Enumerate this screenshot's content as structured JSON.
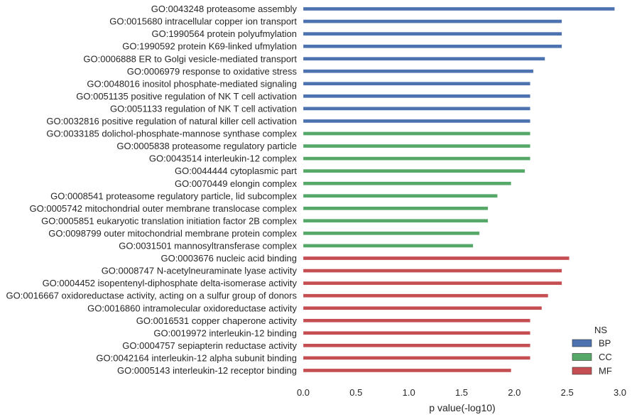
{
  "chart_data": {
    "type": "bar",
    "orientation": "horizontal",
    "xlabel": "p value(-log10)",
    "xlim": [
      0,
      3.0
    ],
    "xticks": [
      "0.0",
      "0.5",
      "1.0",
      "1.5",
      "2.0",
      "2.5",
      "3.0"
    ],
    "grid": false,
    "legend": {
      "title": "NS",
      "placement": "bottom-right",
      "entries": [
        {
          "name": "BP",
          "color": "#4c72b0"
        },
        {
          "name": "CC",
          "color": "#55a868"
        },
        {
          "name": "MF",
          "color": "#c44e52"
        }
      ]
    },
    "bars": [
      {
        "label": "GO:0043248 proteasome assembly",
        "value": 2.95,
        "ns": "BP"
      },
      {
        "label": "GO:0015680 intracellular copper ion transport",
        "value": 2.45,
        "ns": "BP"
      },
      {
        "label": "GO:1990564 protein polyufmylation",
        "value": 2.45,
        "ns": "BP"
      },
      {
        "label": "GO:1990592 protein K69-linked ufmylation",
        "value": 2.45,
        "ns": "BP"
      },
      {
        "label": "GO:0006888 ER to Golgi vesicle-mediated transport",
        "value": 2.29,
        "ns": "BP"
      },
      {
        "label": "GO:0006979 response to oxidative stress",
        "value": 2.18,
        "ns": "BP"
      },
      {
        "label": "GO:0048016 inositol phosphate-mediated signaling",
        "value": 2.15,
        "ns": "BP"
      },
      {
        "label": "GO:0051135 positive regulation of NK T cell activation",
        "value": 2.15,
        "ns": "BP"
      },
      {
        "label": "GO:0051133 regulation of NK T cell activation",
        "value": 2.15,
        "ns": "BP"
      },
      {
        "label": "GO:0032816 positive regulation of natural killer cell activation",
        "value": 2.15,
        "ns": "BP"
      },
      {
        "label": "GO:0033185 dolichol-phosphate-mannose synthase complex",
        "value": 2.15,
        "ns": "CC"
      },
      {
        "label": "GO:0005838 proteasome regulatory particle",
        "value": 2.15,
        "ns": "CC"
      },
      {
        "label": "GO:0043514 interleukin-12 complex",
        "value": 2.15,
        "ns": "CC"
      },
      {
        "label": "GO:0044444 cytoplasmic part",
        "value": 2.1,
        "ns": "CC"
      },
      {
        "label": "GO:0070449 elongin complex",
        "value": 1.97,
        "ns": "CC"
      },
      {
        "label": "GO:0008541 proteasome regulatory particle, lid subcomplex",
        "value": 1.84,
        "ns": "CC"
      },
      {
        "label": "GO:0005742 mitochondrial outer membrane translocase complex",
        "value": 1.75,
        "ns": "CC"
      },
      {
        "label": "GO:0005851 eukaryotic translation initiation factor 2B complex",
        "value": 1.75,
        "ns": "CC"
      },
      {
        "label": "GO:0098799 outer mitochondrial membrane protein complex",
        "value": 1.67,
        "ns": "CC"
      },
      {
        "label": "GO:0031501 mannosyltransferase complex",
        "value": 1.61,
        "ns": "CC"
      },
      {
        "label": "GO:0003676 nucleic acid binding",
        "value": 2.52,
        "ns": "MF"
      },
      {
        "label": "GO:0008747 N-acetylneuraminate lyase activity",
        "value": 2.45,
        "ns": "MF"
      },
      {
        "label": "GO:0004452 isopentenyl-diphosphate delta-isomerase activity",
        "value": 2.45,
        "ns": "MF"
      },
      {
        "label": "GO:0016667 oxidoreductase activity, acting on a sulfur group of donors",
        "value": 2.32,
        "ns": "MF"
      },
      {
        "label": "GO:0016860 intramolecular oxidoreductase activity",
        "value": 2.26,
        "ns": "MF"
      },
      {
        "label": "GO:0016531 copper chaperone activity",
        "value": 2.15,
        "ns": "MF"
      },
      {
        "label": "GO:0019972 interleukin-12 binding",
        "value": 2.15,
        "ns": "MF"
      },
      {
        "label": "GO:0004757 sepiapterin reductase activity",
        "value": 2.15,
        "ns": "MF"
      },
      {
        "label": "GO:0042164 interleukin-12 alpha subunit binding",
        "value": 2.15,
        "ns": "MF"
      },
      {
        "label": "GO:0005143 interleukin-12 receptor binding",
        "value": 1.97,
        "ns": "MF"
      }
    ]
  }
}
